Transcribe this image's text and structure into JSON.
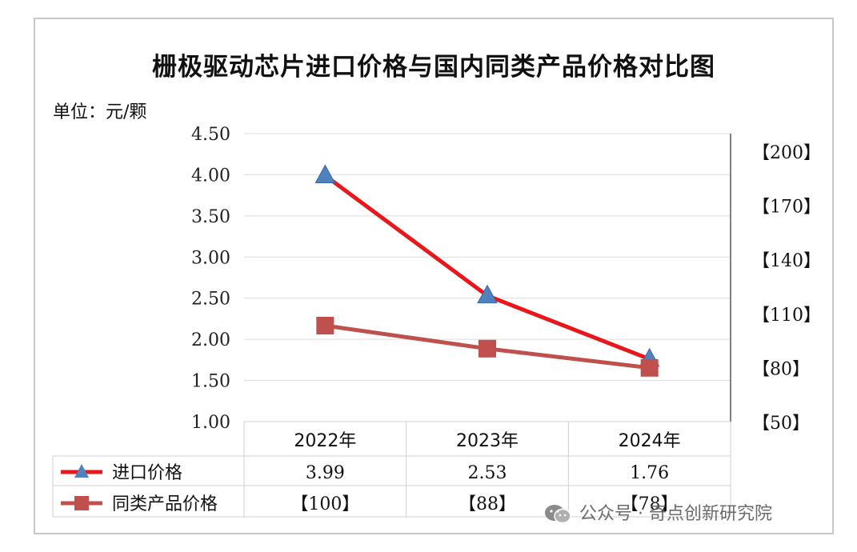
{
  "chart_data": {
    "type": "line",
    "title": "栅极驱动芯片进口价格与国内同类产品价格对比图",
    "unit_label": "单位：元/颗",
    "categories": [
      "2022年",
      "2023年",
      "2024年"
    ],
    "y_left": {
      "ticks": [
        "4.50",
        "4.00",
        "3.50",
        "3.00",
        "2.50",
        "2.00",
        "1.50",
        "1.00"
      ],
      "ylim": [
        1.0,
        4.5
      ]
    },
    "y_right": {
      "ticks": [
        "【200】",
        "【170】",
        "【140】",
        "【110】",
        "【80】",
        "【50】"
      ],
      "ylim": [
        50,
        200
      ]
    },
    "series": [
      {
        "name": "进口价格",
        "axis": "left",
        "values": [
          3.99,
          2.53,
          1.76
        ],
        "labels": [
          "3.99",
          "2.53",
          "1.76"
        ],
        "color": "#e8171b",
        "marker": "triangle",
        "marker_color": "#4f81bd"
      },
      {
        "name": "同类产品价格",
        "axis": "right",
        "values": [
          100,
          88,
          78
        ],
        "labels": [
          "【100】",
          "【88】",
          "【78】"
        ],
        "color": "#c0504d",
        "marker": "square",
        "marker_color": "#c0504d"
      }
    ],
    "grid": true,
    "legend": "data-table-below"
  },
  "watermark": {
    "icon": "wechat-icon",
    "text": "公众号 · 奇点创新研究院"
  }
}
